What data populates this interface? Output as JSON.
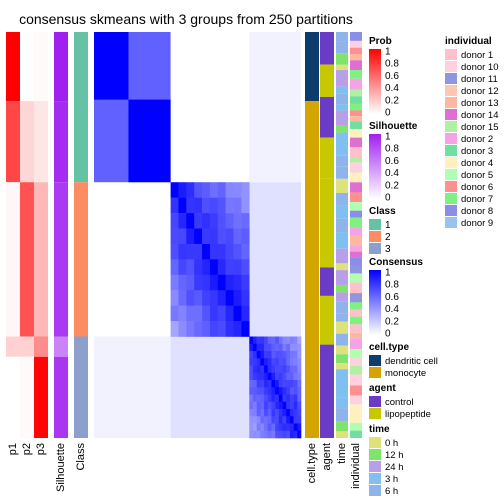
{
  "chart_data": {
    "type": "heatmap",
    "title": "consensus skmeans with 3 groups from 250 partitions",
    "columns": [
      "p1",
      "p2",
      "p3",
      "Silhouette",
      "Class",
      "cell.type",
      "agent",
      "time",
      "individual"
    ],
    "groups": [
      {
        "class": "1",
        "share": 0.37,
        "blocks": [
          {
            "share": 0.46,
            "p": [
              1.0,
              0.0,
              0.02
            ],
            "silhouette": 1.0
          },
          {
            "share": 0.54,
            "p": [
              0.72,
              0.16,
              0.1
            ],
            "silhouette": 0.95
          }
        ]
      },
      {
        "class": "2",
        "share": 0.38,
        "blocks": [
          {
            "share": 1.0,
            "p": [
              0.03,
              0.68,
              0.28
            ],
            "silhouette": 0.88
          }
        ]
      },
      {
        "class": "3",
        "share": 0.25,
        "blocks": [
          {
            "share": 0.2,
            "p": [
              0.18,
              0.18,
              0.45
            ],
            "silhouette": 0.55
          },
          {
            "share": 0.8,
            "p": [
              0.0,
              0.02,
              0.98
            ],
            "silhouette": 0.9
          }
        ]
      }
    ],
    "consensus_blocks": [
      {
        "group": 0,
        "within": 1.0,
        "sub": [
          0.45,
          0.55
        ]
      },
      {
        "group": 1,
        "within": 0.9
      },
      {
        "group": 2,
        "within": 0.88
      }
    ],
    "legends": {
      "prob": {
        "title": "Prob",
        "ticks": [
          "1",
          "0.8",
          "0.6",
          "0.4",
          "0.2",
          "0"
        ],
        "low_color": "#ffffff",
        "high_color": "#ff0000"
      },
      "silhouette": {
        "title": "Silhouette",
        "ticks": [
          "1",
          "0.8",
          "0.6",
          "0.4",
          "0.2",
          "0"
        ],
        "low_color": "#ffffff",
        "high_color": "#a020f0"
      },
      "class": {
        "title": "Class",
        "items": [
          {
            "label": "1",
            "color": "#66c2a5"
          },
          {
            "label": "2",
            "color": "#fc8d62"
          },
          {
            "label": "3",
            "color": "#8da0cb"
          }
        ]
      },
      "consensus": {
        "title": "Consensus",
        "ticks": [
          "1",
          "0.8",
          "0.6",
          "0.4",
          "0.2",
          "0"
        ],
        "low_color": "#ffffff",
        "high_color": "#0000ff"
      },
      "cell_type": {
        "title": "cell.type",
        "items": [
          {
            "label": "dendritic cell",
            "color": "#0b3c6b"
          },
          {
            "label": "monocyte",
            "color": "#d4a500"
          }
        ]
      },
      "agent": {
        "title": "agent",
        "items": [
          {
            "label": "control",
            "color": "#6a3cc6"
          },
          {
            "label": "lipopeptide",
            "color": "#c8c800"
          }
        ]
      },
      "time": {
        "title": "time",
        "items": [
          {
            "label": "0 h",
            "color": "#dde37a"
          },
          {
            "label": "12 h",
            "color": "#7fe46a"
          },
          {
            "label": "24 h",
            "color": "#b7a0e8"
          },
          {
            "label": "3 h",
            "color": "#80c0f0"
          },
          {
            "label": "6 h",
            "color": "#8fb4ec"
          }
        ]
      },
      "individual": {
        "title": "individual",
        "items": [
          {
            "label": "donor 1",
            "color": "#ffc0cb"
          },
          {
            "label": "donor 10",
            "color": "#ffd0e0"
          },
          {
            "label": "donor 11",
            "color": "#8f96e0"
          },
          {
            "label": "donor 12",
            "color": "#ffc6b4"
          },
          {
            "label": "donor 13",
            "color": "#ffb8a0"
          },
          {
            "label": "donor 14",
            "color": "#e070d0"
          },
          {
            "label": "donor 15",
            "color": "#b0f0a0"
          },
          {
            "label": "donor 2",
            "color": "#f4a4e4"
          },
          {
            "label": "donor 3",
            "color": "#70e0a0"
          },
          {
            "label": "donor 4",
            "color": "#fff0c0"
          },
          {
            "label": "donor 5",
            "color": "#b0ffb0"
          },
          {
            "label": "donor 6",
            "color": "#ff9090"
          },
          {
            "label": "donor 7",
            "color": "#80f080"
          },
          {
            "label": "donor 8",
            "color": "#8a8ee8"
          },
          {
            "label": "donor 9",
            "color": "#98c2f0"
          }
        ]
      }
    },
    "annotations": {
      "cell_type": [
        "dendritic cell",
        "monocyte"
      ],
      "agent": [
        "control",
        "lipopeptide"
      ],
      "time": [
        "0 h",
        "12 h",
        "24 h",
        "3 h",
        "6 h"
      ]
    }
  }
}
